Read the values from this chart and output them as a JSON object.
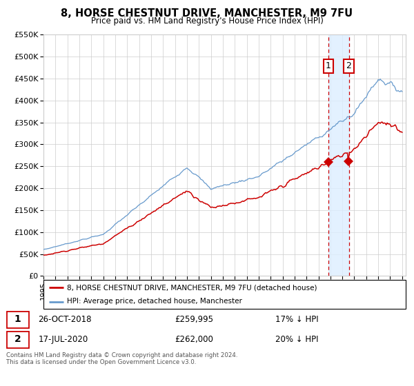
{
  "title": "8, HORSE CHESTNUT DRIVE, MANCHESTER, M9 7FU",
  "subtitle": "Price paid vs. HM Land Registry's House Price Index (HPI)",
  "ylabel_max": 550000,
  "yticks": [
    0,
    50000,
    100000,
    150000,
    200000,
    250000,
    300000,
    350000,
    400000,
    450000,
    500000,
    550000
  ],
  "ytick_labels": [
    "£0",
    "£50K",
    "£100K",
    "£150K",
    "£200K",
    "£250K",
    "£300K",
    "£350K",
    "£400K",
    "£450K",
    "£500K",
    "£550K"
  ],
  "x_start_year": 1995,
  "x_end_year": 2025,
  "transaction1_date": 2018.82,
  "transaction1_price": 259995,
  "transaction2_date": 2020.54,
  "transaction2_price": 262000,
  "transaction1_label": "26-OCT-2018",
  "transaction1_amount": "£259,995",
  "transaction1_note": "17% ↓ HPI",
  "transaction2_label": "17-JUL-2020",
  "transaction2_amount": "£262,000",
  "transaction2_note": "20% ↓ HPI",
  "legend_line1": "8, HORSE CHESTNUT DRIVE, MANCHESTER, M9 7FU (detached house)",
  "legend_line2": "HPI: Average price, detached house, Manchester",
  "footer": "Contains HM Land Registry data © Crown copyright and database right 2024.\nThis data is licensed under the Open Government Licence v3.0.",
  "red_line_color": "#cc0000",
  "blue_line_color": "#6699cc",
  "shaded_color": "#ddeeff",
  "grid_color": "#cccccc",
  "background_color": "#ffffff",
  "label1_value": 490000,
  "label2_value": 490000
}
